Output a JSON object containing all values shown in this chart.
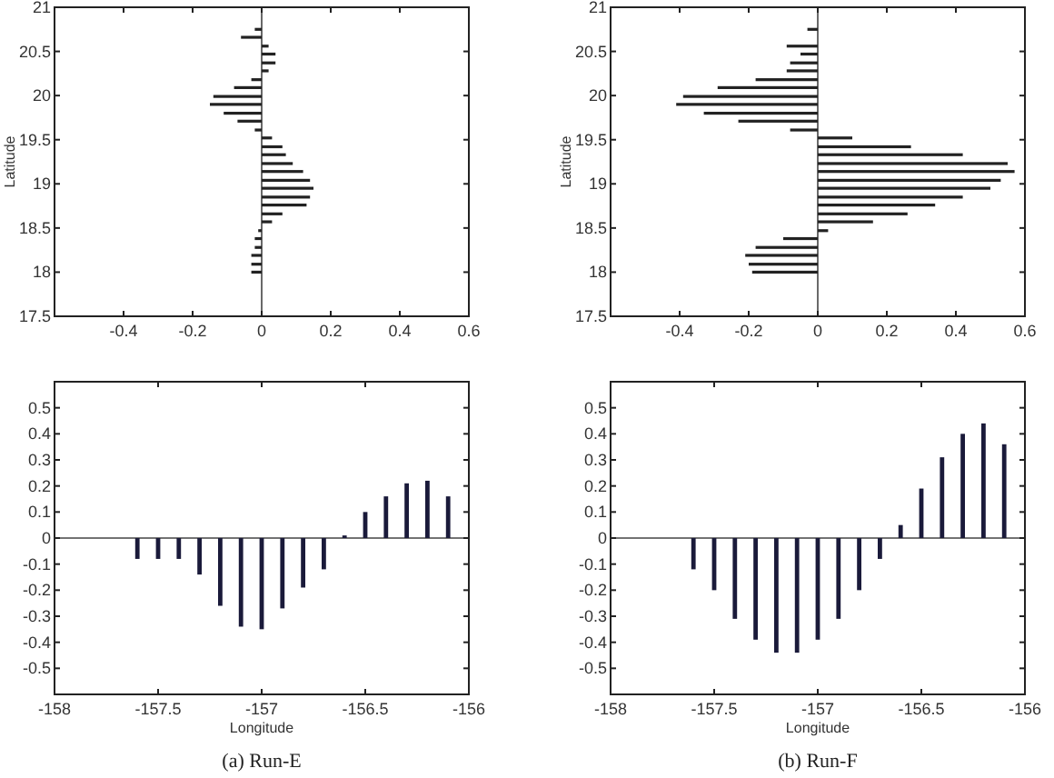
{
  "chart_data": [
    {
      "type": "bar",
      "orientation": "horizontal",
      "ylabel": "Latitude",
      "color": "#222222",
      "x": [
        18.0,
        18.09,
        18.19,
        18.28,
        18.38,
        18.47,
        18.57,
        18.66,
        18.76,
        18.85,
        18.95,
        19.04,
        19.14,
        19.23,
        19.33,
        19.42,
        19.52,
        19.61,
        19.71,
        19.8,
        19.9,
        19.99,
        20.09,
        20.18,
        20.28,
        20.37,
        20.47,
        20.56,
        20.66,
        20.75
      ],
      "values": [
        -0.03,
        -0.03,
        -0.03,
        -0.02,
        -0.02,
        -0.01,
        0.03,
        0.06,
        0.13,
        0.14,
        0.15,
        0.14,
        0.12,
        0.09,
        0.07,
        0.06,
        0.03,
        -0.02,
        -0.07,
        -0.11,
        -0.15,
        -0.14,
        -0.08,
        -0.03,
        0.02,
        0.04,
        0.04,
        0.02,
        -0.06,
        -0.02
      ],
      "xlim": [
        -0.6,
        0.6
      ],
      "xticks": [
        -0.4,
        -0.2,
        0,
        0.2,
        0.4,
        0.6
      ],
      "ylim": [
        17.5,
        21
      ],
      "yticks": [
        17.5,
        18,
        18.5,
        19,
        19.5,
        20,
        20.5,
        21
      ]
    },
    {
      "type": "bar",
      "orientation": "horizontal",
      "ylabel": "Latitude",
      "color": "#222222",
      "x": [
        18.0,
        18.09,
        18.19,
        18.28,
        18.38,
        18.47,
        18.57,
        18.66,
        18.76,
        18.85,
        18.95,
        19.04,
        19.14,
        19.23,
        19.33,
        19.42,
        19.52,
        19.61,
        19.71,
        19.8,
        19.9,
        19.99,
        20.09,
        20.18,
        20.28,
        20.37,
        20.47,
        20.56,
        20.66,
        20.75
      ],
      "values": [
        -0.19,
        -0.2,
        -0.21,
        -0.18,
        -0.1,
        0.03,
        0.16,
        0.26,
        0.34,
        0.42,
        0.5,
        0.53,
        0.57,
        0.55,
        0.42,
        0.27,
        0.1,
        -0.08,
        -0.23,
        -0.33,
        -0.41,
        -0.39,
        -0.29,
        -0.18,
        -0.09,
        -0.08,
        -0.05,
        -0.09,
        0,
        -0.03
      ],
      "xlim": [
        -0.6,
        0.6
      ],
      "xticks": [
        -0.4,
        -0.2,
        0,
        0.2,
        0.4,
        0.6
      ],
      "ylim": [
        17.5,
        21
      ],
      "yticks": [
        17.5,
        18,
        18.5,
        19,
        19.5,
        20,
        20.5,
        21
      ]
    },
    {
      "type": "bar",
      "xlabel": "Longitude",
      "color": "#1a1a3a",
      "annotations": [
        "(a) Run-E"
      ],
      "x": [
        -157.6,
        -157.5,
        -157.4,
        -157.3,
        -157.2,
        -157.1,
        -157.0,
        -156.9,
        -156.8,
        -156.7,
        -156.6,
        -156.5,
        -156.4,
        -156.3,
        -156.2,
        -156.1
      ],
      "values": [
        -0.08,
        -0.08,
        -0.08,
        -0.14,
        -0.26,
        -0.34,
        -0.35,
        -0.27,
        -0.19,
        -0.12,
        0.01,
        0.1,
        0.16,
        0.21,
        0.22,
        0.16
      ],
      "xlim": [
        -158,
        -156
      ],
      "xticks": [
        -158,
        -157.5,
        -157,
        -156.5,
        -156
      ],
      "ylim": [
        -0.6,
        0.6
      ],
      "yticks": [
        -0.5,
        -0.4,
        -0.3,
        -0.2,
        -0.1,
        0,
        0.1,
        0.2,
        0.3,
        0.4,
        0.5
      ]
    },
    {
      "type": "bar",
      "xlabel": "Longitude",
      "color": "#1a1a3a",
      "annotations": [
        "(b) Run-F"
      ],
      "x": [
        -157.6,
        -157.5,
        -157.4,
        -157.3,
        -157.2,
        -157.1,
        -157.0,
        -156.9,
        -156.8,
        -156.7,
        -156.6,
        -156.5,
        -156.4,
        -156.3,
        -156.2,
        -156.1
      ],
      "values": [
        -0.12,
        -0.2,
        -0.31,
        -0.39,
        -0.44,
        -0.44,
        -0.39,
        -0.31,
        -0.2,
        -0.08,
        0.05,
        0.19,
        0.31,
        0.4,
        0.44,
        0.36
      ],
      "xlim": [
        -158,
        -156
      ],
      "xticks": [
        -158,
        -157.5,
        -157,
        -156.5,
        -156
      ],
      "ylim": [
        -0.6,
        0.6
      ],
      "yticks": [
        -0.5,
        -0.4,
        -0.3,
        -0.2,
        -0.1,
        0,
        0.1,
        0.2,
        0.3,
        0.4,
        0.5
      ]
    }
  ]
}
